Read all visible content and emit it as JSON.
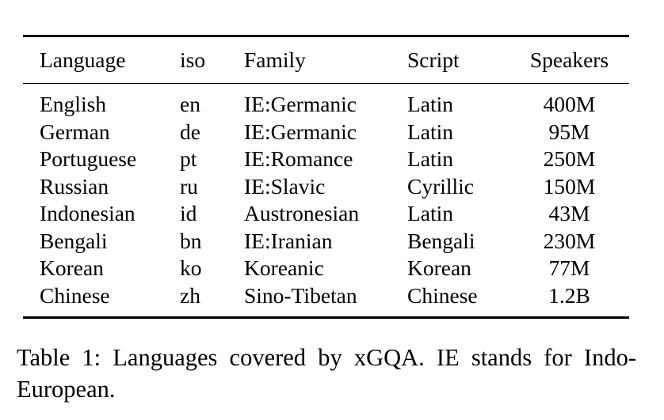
{
  "table": {
    "headers": [
      "Language",
      "iso",
      "Family",
      "Script",
      "Speakers"
    ],
    "rows": [
      [
        "English",
        "en",
        "IE:Germanic",
        "Latin",
        "400M"
      ],
      [
        "German",
        "de",
        "IE:Germanic",
        "Latin",
        "95M"
      ],
      [
        "Portuguese",
        "pt",
        "IE:Romance",
        "Latin",
        "250M"
      ],
      [
        "Russian",
        "ru",
        "IE:Slavic",
        "Cyrillic",
        "150M"
      ],
      [
        "Indonesian",
        "id",
        "Austronesian",
        "Latin",
        "43M"
      ],
      [
        "Bengali",
        "bn",
        "IE:Iranian",
        "Bengali",
        "230M"
      ],
      [
        "Korean",
        "ko",
        "Koreanic",
        "Korean",
        "77M"
      ],
      [
        "Chinese",
        "zh",
        "Sino-Tibetan",
        "Chinese",
        "1.2B"
      ]
    ]
  },
  "caption": {
    "text": "Table 1: Languages covered by xGQA. IE stands for Indo-European."
  }
}
